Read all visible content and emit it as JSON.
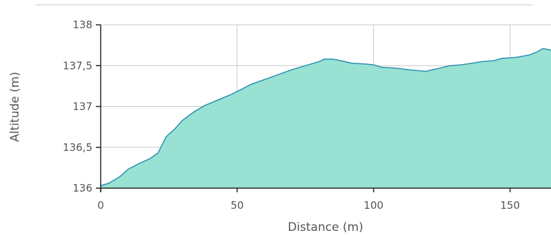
{
  "chart_data": {
    "type": "area",
    "title": "",
    "xlabel": "Distance (m)",
    "ylabel": "Altitude (m)",
    "xlim": [
      0,
      165
    ],
    "ylim": [
      136,
      138
    ],
    "x_ticks": [
      0,
      50,
      100,
      150
    ],
    "x_tick_labels": [
      "0",
      "50",
      "100",
      "150"
    ],
    "y_ticks": [
      136,
      136.5,
      137,
      137.5,
      138
    ],
    "y_tick_labels": [
      "136",
      "136,5",
      "137",
      "137,5",
      "138"
    ],
    "grid": true,
    "colors": {
      "fill": "#98e1d3",
      "line": "#2a8fb0",
      "grid": "#c8c8c8",
      "axis": "#222222"
    },
    "series": [
      {
        "x": [
          0,
          3,
          7,
          10,
          14,
          18,
          21,
          24,
          27,
          30,
          34,
          38,
          43,
          48,
          51,
          55,
          60,
          65,
          70,
          75,
          80,
          82,
          85,
          88,
          92,
          97,
          100,
          103,
          108,
          113,
          119,
          123,
          128,
          132,
          136,
          140,
          144,
          147,
          152,
          157,
          160,
          162,
          165
        ],
        "y": [
          136.03,
          136.06,
          136.14,
          136.23,
          136.3,
          136.36,
          136.43,
          136.63,
          136.72,
          136.83,
          136.93,
          137.01,
          137.08,
          137.15,
          137.2,
          137.27,
          137.33,
          137.39,
          137.45,
          137.5,
          137.55,
          137.58,
          137.58,
          137.56,
          137.53,
          137.52,
          137.51,
          137.48,
          137.47,
          137.45,
          137.43,
          137.46,
          137.5,
          137.51,
          137.53,
          137.55,
          137.56,
          137.59,
          137.6,
          137.63,
          137.67,
          137.71,
          137.69
        ]
      }
    ]
  }
}
